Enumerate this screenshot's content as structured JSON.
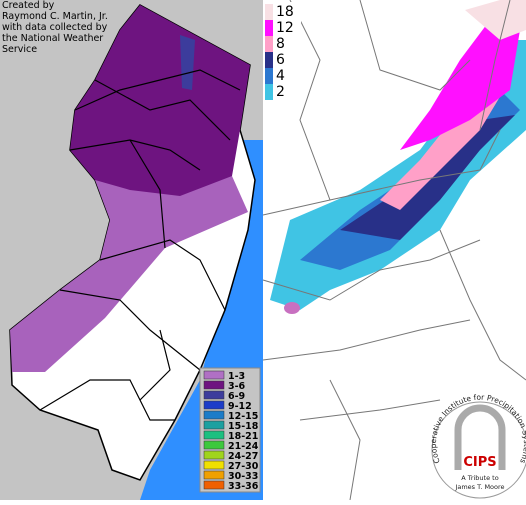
{
  "left_map": {
    "credit": [
      "Created by",
      "Raymond C. Martin, Jr.",
      "with data collected by",
      "the National Weather",
      "Service"
    ],
    "legend": [
      {
        "label": "1-3",
        "color": "#b070c4"
      },
      {
        "label": "3-6",
        "color": "#6e1480"
      },
      {
        "label": "6-9",
        "color": "#3c3c9c"
      },
      {
        "label": "9-12",
        "color": "#1c3cc8"
      },
      {
        "label": "12-15",
        "color": "#1c7cc8"
      },
      {
        "label": "15-18",
        "color": "#1ca0a0"
      },
      {
        "label": "18-21",
        "color": "#1cc080"
      },
      {
        "label": "21-24",
        "color": "#3cc83c"
      },
      {
        "label": "24-27",
        "color": "#a0d41c"
      },
      {
        "label": "27-30",
        "color": "#f0e000"
      },
      {
        "label": "30-33",
        "color": "#f0a000"
      },
      {
        "label": "33-36",
        "color": "#f06000"
      }
    ]
  },
  "right_map": {
    "legend": [
      {
        "label": "18",
        "color": "#f8e0e4"
      },
      {
        "label": "12",
        "color": "#ff10ff"
      },
      {
        "label": "8",
        "color": "#ffa0c8"
      },
      {
        "label": "6",
        "color": "#283088"
      },
      {
        "label": "4",
        "color": "#2c78d0"
      },
      {
        "label": "2",
        "color": "#40c4e4"
      }
    ]
  },
  "logo": {
    "name": "CIPS",
    "arc": "Cooperative Institute for Precipitation Systems",
    "tribute_1": "A Tribute to",
    "tribute_2": "James T. Moore"
  }
}
